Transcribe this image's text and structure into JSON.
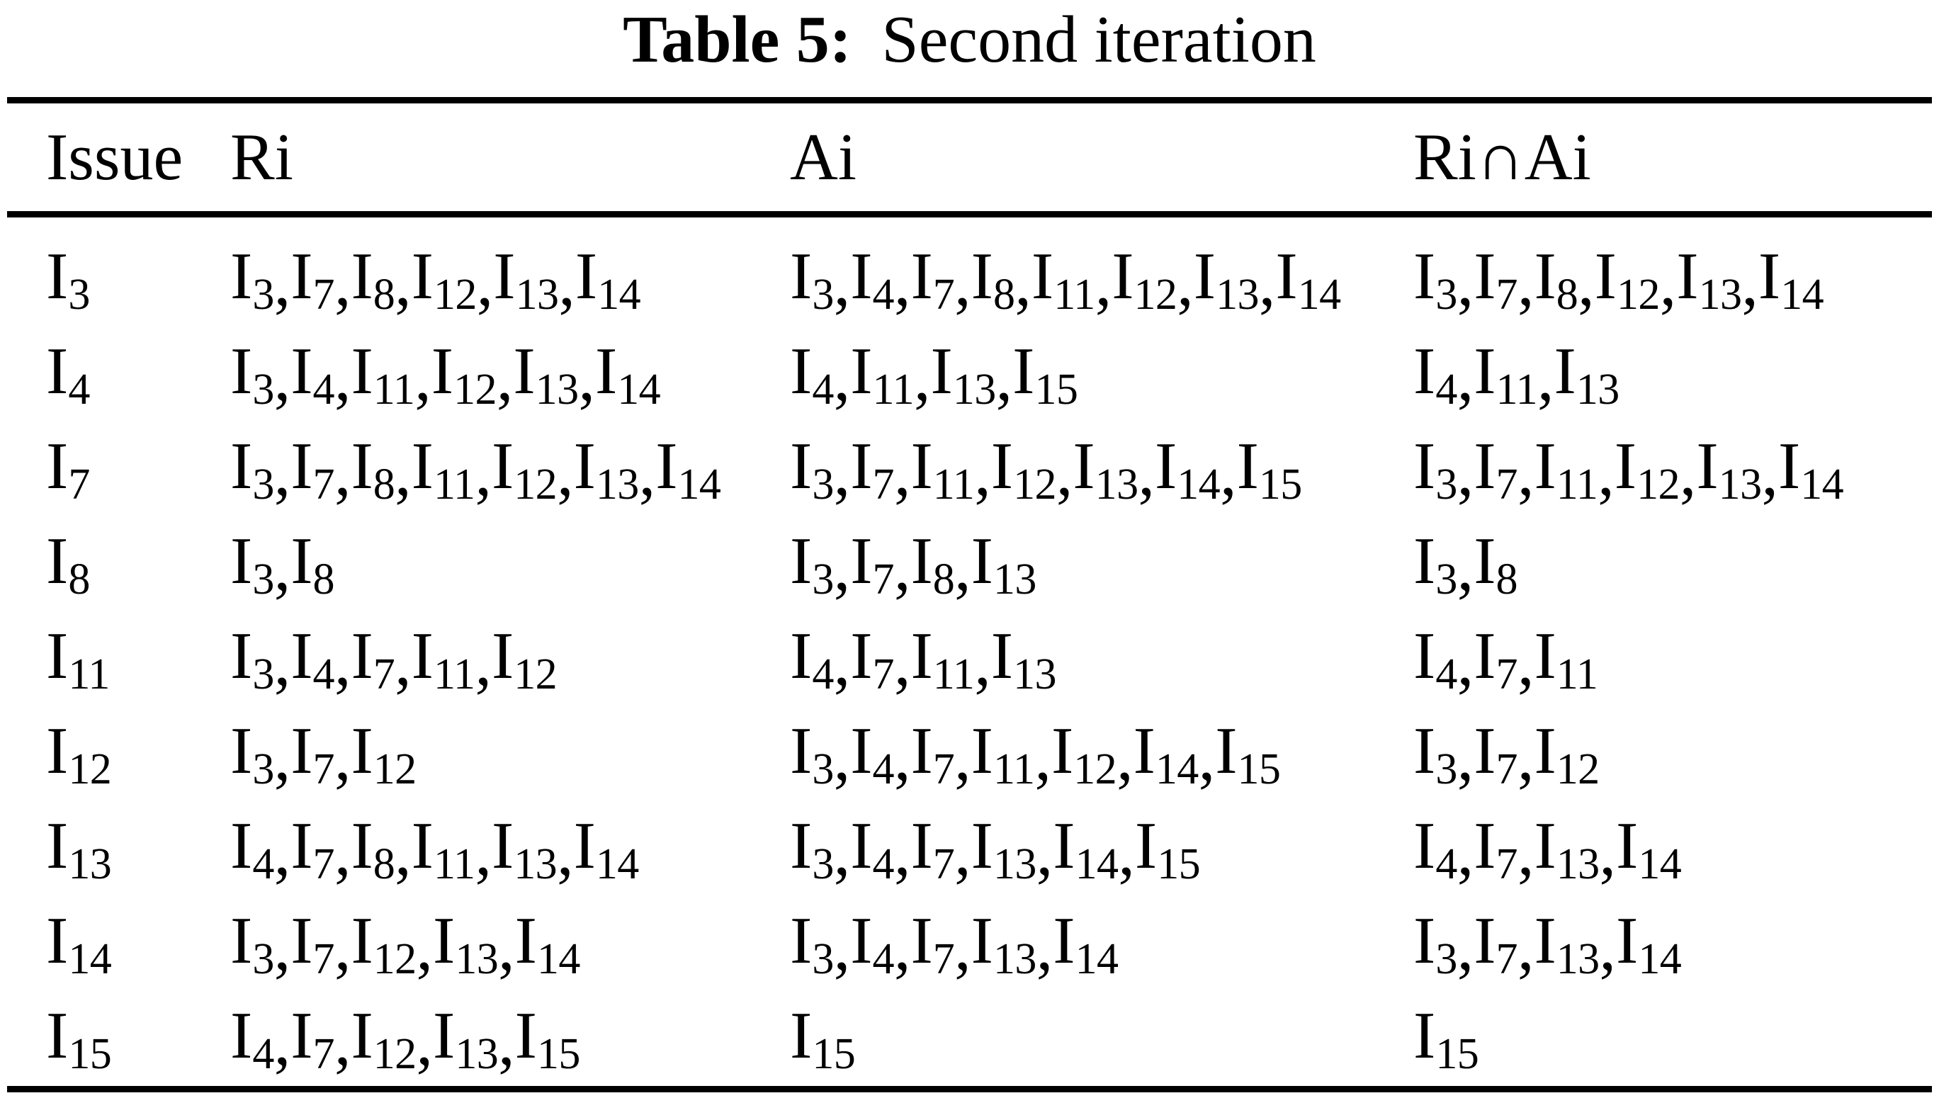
{
  "caption": {
    "label": "Table 5:",
    "text": "Second iteration"
  },
  "columns": [
    "Issue",
    "Ri",
    "Ai",
    "Ri∩Ai"
  ],
  "item_symbol": "I",
  "rows": [
    {
      "issue": [
        3
      ],
      "ri": [
        3,
        7,
        8,
        12,
        13,
        14
      ],
      "ai": [
        3,
        4,
        7,
        8,
        11,
        12,
        13,
        14
      ],
      "ri_ai": [
        3,
        7,
        8,
        12,
        13,
        14
      ]
    },
    {
      "issue": [
        4
      ],
      "ri": [
        3,
        4,
        11,
        12,
        13,
        14
      ],
      "ai": [
        4,
        11,
        13,
        15
      ],
      "ri_ai": [
        4,
        11,
        13
      ]
    },
    {
      "issue": [
        7
      ],
      "ri": [
        3,
        7,
        8,
        11,
        12,
        13,
        14
      ],
      "ai": [
        3,
        7,
        11,
        12,
        13,
        14,
        15
      ],
      "ri_ai": [
        3,
        7,
        11,
        12,
        13,
        14
      ]
    },
    {
      "issue": [
        8
      ],
      "ri": [
        3,
        8
      ],
      "ai": [
        3,
        7,
        8,
        13
      ],
      "ri_ai": [
        3,
        8
      ]
    },
    {
      "issue": [
        11
      ],
      "ri": [
        3,
        4,
        7,
        11,
        12
      ],
      "ai": [
        4,
        7,
        11,
        13
      ],
      "ri_ai": [
        4,
        7,
        11
      ]
    },
    {
      "issue": [
        12
      ],
      "ri": [
        3,
        7,
        12
      ],
      "ai": [
        3,
        4,
        7,
        11,
        12,
        14,
        15
      ],
      "ri_ai": [
        3,
        7,
        12
      ]
    },
    {
      "issue": [
        13
      ],
      "ri": [
        4,
        7,
        8,
        11,
        13,
        14
      ],
      "ai": [
        3,
        4,
        7,
        13,
        14,
        15
      ],
      "ri_ai": [
        4,
        7,
        13,
        14
      ]
    },
    {
      "issue": [
        14
      ],
      "ri": [
        3,
        7,
        12,
        13,
        14
      ],
      "ai": [
        3,
        4,
        7,
        13,
        14
      ],
      "ri_ai": [
        3,
        7,
        13,
        14
      ]
    },
    {
      "issue": [
        15
      ],
      "ri": [
        4,
        7,
        12,
        13,
        15
      ],
      "ai": [
        15
      ],
      "ri_ai": [
        15
      ]
    }
  ],
  "colors": {
    "text": "#000000",
    "background": "#ffffff",
    "rule": "#000000"
  }
}
